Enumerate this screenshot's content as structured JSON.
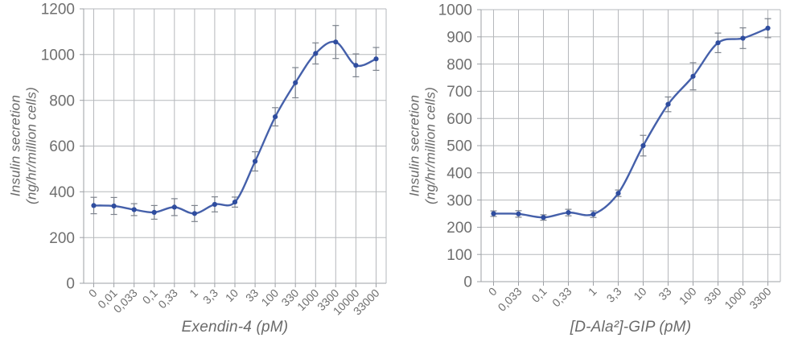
{
  "page": {
    "background": "#ffffff"
  },
  "style": {
    "line_color": "#4560aa",
    "marker_color": "#2f4d9f",
    "error_bar_color": "#7d838d",
    "grid_color": "#b6b8bc",
    "axis_color": "#9da0a5",
    "tick_label_color": "#6f6f6f",
    "axis_title_color": "#6a6a6a"
  },
  "chart_data": [
    {
      "type": "line",
      "title": "",
      "xlabel": "Exendin-4 (pM)",
      "ylabel_lines": [
        "Insulin secretion",
        "(ng/hr/million cells)"
      ],
      "categories": [
        "0",
        "0,01",
        "0,033",
        "0,1",
        "0,33",
        "1",
        "3,3",
        "10",
        "33",
        "100",
        "330",
        "1000",
        "3300",
        "10000",
        "33000"
      ],
      "values": [
        340,
        338,
        322,
        310,
        333,
        305,
        345,
        355,
        533,
        728,
        877,
        1005,
        1055,
        953,
        981
      ],
      "errors": [
        36,
        37,
        26,
        30,
        37,
        35,
        33,
        22,
        42,
        40,
        66,
        46,
        72,
        50,
        50
      ],
      "ylim": [
        0,
        1200
      ],
      "ytick_step": 200,
      "grid": true,
      "legend": "none",
      "x_tick_rotation": 45,
      "marker": "circle",
      "smooth": true
    },
    {
      "type": "line",
      "title": "",
      "xlabel": "[D-Ala²]-GIP (pM)",
      "ylabel_lines": [
        "Insulin secretion",
        "(ng/hr/million cells)"
      ],
      "categories": [
        "0",
        "0,033",
        "0,1",
        "0,33",
        "1",
        "3,3",
        "10",
        "33",
        "100",
        "330",
        "1000",
        "3300"
      ],
      "values": [
        250,
        249,
        236,
        254,
        248,
        325,
        500,
        652,
        755,
        878,
        895,
        932
      ],
      "errors": [
        10,
        12,
        10,
        12,
        12,
        12,
        38,
        27,
        50,
        36,
        38,
        35
      ],
      "ylim": [
        0,
        1000
      ],
      "ytick_step": 100,
      "grid": true,
      "legend": "none",
      "x_tick_rotation": 45,
      "marker": "circle",
      "smooth": true
    }
  ]
}
